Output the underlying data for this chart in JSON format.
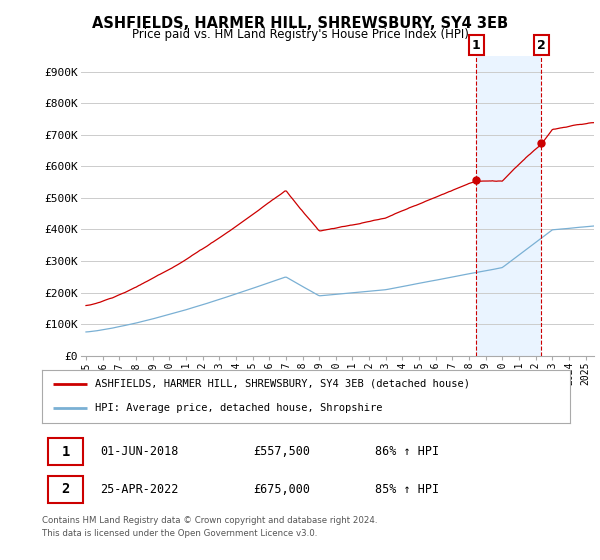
{
  "title": "ASHFIELDS, HARMER HILL, SHREWSBURY, SY4 3EB",
  "subtitle": "Price paid vs. HM Land Registry's House Price Index (HPI)",
  "ylabel_ticks": [
    "£0",
    "£100K",
    "£200K",
    "£300K",
    "£400K",
    "£500K",
    "£600K",
    "£700K",
    "£800K",
    "£900K"
  ],
  "ytick_values": [
    0,
    100000,
    200000,
    300000,
    400000,
    500000,
    600000,
    700000,
    800000,
    900000
  ],
  "ylim": [
    0,
    950000
  ],
  "xlim_start": 1994.7,
  "xlim_end": 2025.5,
  "hpi_color": "#7ab0d4",
  "price_color": "#cc0000",
  "marker1_year": 2018.42,
  "marker1_price": 557500,
  "marker2_year": 2022.32,
  "marker2_price": 675000,
  "legend_label1": "ASHFIELDS, HARMER HILL, SHREWSBURY, SY4 3EB (detached house)",
  "legend_label2": "HPI: Average price, detached house, Shropshire",
  "sale1_date": "01-JUN-2018",
  "sale1_price": "£557,500",
  "sale1_hpi": "86% ↑ HPI",
  "sale2_date": "25-APR-2022",
  "sale2_price": "£675,000",
  "sale2_hpi": "85% ↑ HPI",
  "footnote1": "Contains HM Land Registry data © Crown copyright and database right 2024.",
  "footnote2": "This data is licensed under the Open Government Licence v3.0.",
  "background_color": "#ffffff",
  "grid_color": "#cccccc",
  "shade_color": "#ddeeff"
}
